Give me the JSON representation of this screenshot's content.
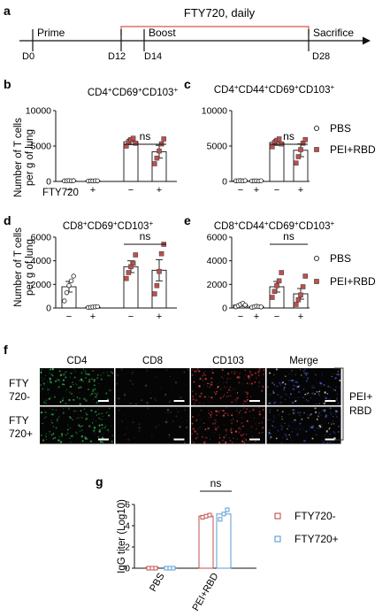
{
  "colors": {
    "pbs": "#ffffff",
    "pei_rbd": "#c0504d",
    "fty_minus": "#c0504d",
    "fty_plus": "#5b9bd5",
    "fty_bracket": "#d9534f",
    "axis": "#111111",
    "micro_bg": "#050505"
  },
  "panel_letters": [
    "a",
    "b",
    "c",
    "d",
    "e",
    "f",
    "g"
  ],
  "timeline": {
    "treatment_label": "FTY720, daily",
    "phases": [
      "Prime",
      "Boost",
      "Sacrifice"
    ],
    "days": [
      "D0",
      "D12",
      "D14",
      "D28"
    ]
  },
  "shared": {
    "ylabel_lines": [
      "Number of T cells",
      "per g of lung"
    ],
    "fty_label": "FTY720",
    "minus": "−",
    "plus": "+",
    "ns": "ns"
  },
  "legend_top": [
    "PBS",
    "PEI+RBD"
  ],
  "legend_mid": [
    "PBS",
    "PEI+RBD"
  ],
  "chart_data": [
    {
      "panel": "b",
      "type": "bar",
      "title": {
        "base": "CD4",
        "parts": [
          [
            "+",
            "CD69"
          ],
          [
            "+",
            "CD103"
          ],
          [
            "+",
            ""
          ]
        ]
      },
      "ylim": [
        0,
        10000
      ],
      "yticks": [
        "0",
        "5000",
        "10000"
      ],
      "groups": [
        "PBS FTY720−",
        "PBS FTY720+",
        "PEI+RBD FTY720−",
        "PEI+RBD FTY720+"
      ],
      "means": [
        100,
        80,
        5600,
        4200
      ],
      "sem": [
        40,
        30,
        400,
        900
      ],
      "points": [
        [
          80,
          100,
          120,
          90,
          110
        ],
        [
          60,
          80,
          70,
          100,
          90
        ],
        [
          5000,
          5600,
          5900,
          6100,
          5400
        ],
        [
          2500,
          3300,
          4300,
          5300,
          6000
        ]
      ]
    },
    {
      "panel": "c",
      "type": "bar",
      "title": {
        "base": "CD4",
        "parts": [
          [
            "+",
            "CD44"
          ],
          [
            "+",
            "CD69"
          ],
          [
            "+",
            "CD103"
          ],
          [
            "+",
            ""
          ]
        ]
      },
      "ylim": [
        0,
        10000
      ],
      "yticks": [
        "0",
        "5000",
        "10000"
      ],
      "groups": [
        "PBS FTY720−",
        "PBS FTY720+",
        "PEI+RBD FTY720−",
        "PEI+RBD FTY720+"
      ],
      "means": [
        100,
        80,
        5500,
        4400
      ],
      "sem": [
        40,
        30,
        400,
        900
      ],
      "points": [
        [
          90,
          100,
          110,
          80,
          120
        ],
        [
          70,
          80,
          90,
          60,
          100
        ],
        [
          4900,
          5500,
          5800,
          6000,
          5300
        ],
        [
          2600,
          3500,
          4500,
          5400,
          5900
        ]
      ]
    },
    {
      "panel": "d",
      "type": "bar",
      "title": {
        "base": "CD8",
        "parts": [
          [
            "+",
            "CD69"
          ],
          [
            "+",
            "CD103"
          ],
          [
            "+",
            ""
          ]
        ]
      },
      "ylim": [
        0,
        6000
      ],
      "yticks": [
        "0",
        "2000",
        "4000",
        "6000"
      ],
      "groups": [
        "PBS FTY720−",
        "PBS FTY720+",
        "PEI+RBD FTY720−",
        "PEI+RBD FTY720+"
      ],
      "means": [
        1800,
        80,
        3500,
        3200
      ],
      "sem": [
        450,
        30,
        500,
        900
      ],
      "points": [
        [
          600,
          1300,
          1900,
          2300,
          2700
        ],
        [
          40,
          60,
          80,
          100,
          120
        ],
        [
          2500,
          3000,
          3500,
          3800,
          4500
        ],
        [
          1200,
          1900,
          3100,
          4600,
          5400
        ]
      ]
    },
    {
      "panel": "e",
      "type": "bar",
      "title": {
        "base": "CD8",
        "parts": [
          [
            "+",
            "CD44"
          ],
          [
            "+",
            "CD69"
          ],
          [
            "+",
            "CD103"
          ],
          [
            "+",
            ""
          ]
        ]
      },
      "ylim": [
        0,
        6000
      ],
      "yticks": [
        "0",
        "2000",
        "4000",
        "6000"
      ],
      "groups": [
        "PBS FTY720−",
        "PBS FTY720+",
        "PEI+RBD FTY720−",
        "PEI+RBD FTY720+"
      ],
      "means": [
        250,
        120,
        1800,
        1200
      ],
      "sem": [
        100,
        50,
        450,
        450
      ],
      "points": [
        [
          100,
          200,
          300,
          400,
          250
        ],
        [
          60,
          100,
          150,
          120,
          90
        ],
        [
          900,
          1400,
          1900,
          2300,
          3000
        ],
        [
          300,
          700,
          1100,
          1800,
          2700
        ]
      ]
    },
    {
      "panel": "g",
      "type": "bar",
      "ylabel": "IgG titer (Log10)",
      "ylim": [
        0,
        6
      ],
      "yticks": [
        "0",
        "2",
        "4",
        "6"
      ],
      "categories": [
        "PBS",
        "PEI+RBD"
      ],
      "series": [
        {
          "name": "FTY720-",
          "values": [
            0,
            4.9
          ],
          "points": [
            [
              0,
              0,
              0
            ],
            [
              4.8,
              4.9,
              5.0
            ]
          ]
        },
        {
          "name": "FTY720+",
          "values": [
            0,
            5.1
          ],
          "points": [
            [
              0,
              0,
              0
            ],
            [
              4.6,
              5.1,
              5.5
            ]
          ]
        }
      ]
    }
  ],
  "panel_f": {
    "columns": [
      "CD4",
      "CD8",
      "CD103",
      "Merge"
    ],
    "rows": [
      [
        "FTY",
        "720-"
      ],
      [
        "FTY",
        "720+"
      ]
    ],
    "group_label": [
      "PEI+",
      "RBD"
    ]
  }
}
